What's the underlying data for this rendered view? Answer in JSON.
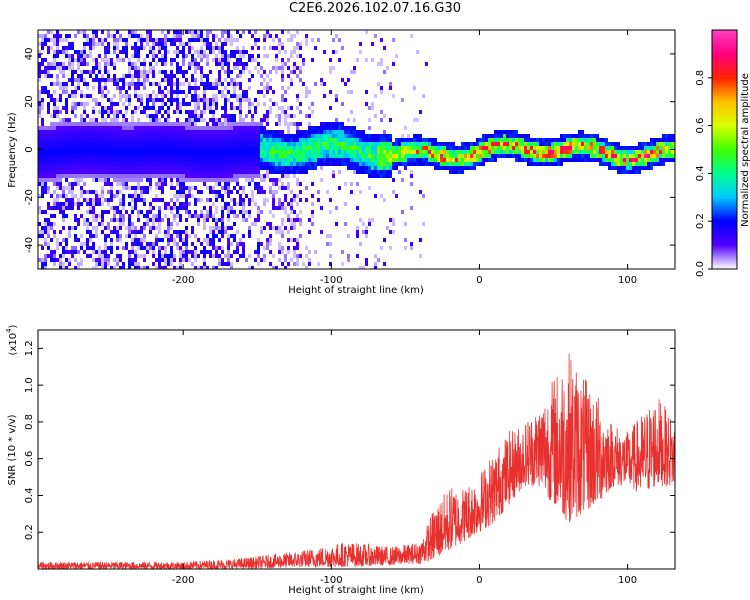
{
  "title": "C2E6.2026.102.07.16.G30",
  "chart_data": [
    {
      "type": "heatmap",
      "title": "C2E6.2026.102.07.16.G30",
      "xlabel": "Height of straight line (km)",
      "ylabel": "Frequency (Hz)",
      "xlim": [
        -298,
        132
      ],
      "ylim": [
        -50,
        50
      ],
      "xticks": [
        -200,
        -100,
        0,
        100
      ],
      "yticks": [
        -40,
        -20,
        0,
        20,
        40
      ],
      "colorbar": {
        "label": "Normalized spectral amplitude",
        "range": [
          0,
          1
        ],
        "ticks": [
          0.0,
          0.2,
          0.4,
          0.6,
          0.8
        ],
        "tick_labels": [
          "0.0",
          "0.2",
          "0.4",
          "0.6",
          "0.8"
        ],
        "colormap": [
          "#ffffff",
          "#5000ff",
          "#0000ff",
          "#00c8ff",
          "#00ff90",
          "#40ff00",
          "#d8ff00",
          "#ffc000",
          "#ff2000",
          "#ff0080",
          "#ff40c0"
        ]
      },
      "description_values": {
        "band_center_hz": 0,
        "band_halfwidth_hz_near_zero_km": 4,
        "scatter_extent_hz_below_minus150_km": [
          -50,
          50
        ],
        "peak_amplitude_region_km": [
          -40,
          130
        ]
      }
    },
    {
      "type": "line",
      "xlabel": "Height of straight line (km)",
      "ylabel": "SNR (10 * v/v)",
      "y_multiplier_label": "(x10",
      "y_multiplier_exp": "4",
      "y_multiplier_close": ")",
      "xlim": [
        -298,
        132
      ],
      "ylim": [
        0,
        1.3
      ],
      "xticks": [
        -200,
        -100,
        0,
        100
      ],
      "yticks": [
        0.2,
        0.4,
        0.6,
        0.8,
        1.0,
        1.2
      ],
      "ytick_labels": [
        "0.2",
        "0.4",
        "0.6",
        "0.8",
        "1.0",
        "1.2"
      ],
      "series": [
        {
          "color": "#e8312f",
          "envelope": [
            {
              "x": -298,
              "lo": 0.0,
              "hi": 0.04
            },
            {
              "x": -250,
              "lo": 0.0,
              "hi": 0.04
            },
            {
              "x": -200,
              "lo": 0.0,
              "hi": 0.04
            },
            {
              "x": -160,
              "lo": 0.0,
              "hi": 0.06
            },
            {
              "x": -120,
              "lo": 0.01,
              "hi": 0.1
            },
            {
              "x": -90,
              "lo": 0.01,
              "hi": 0.15
            },
            {
              "x": -60,
              "lo": 0.02,
              "hi": 0.12
            },
            {
              "x": -40,
              "lo": 0.03,
              "hi": 0.15
            },
            {
              "x": -30,
              "lo": 0.05,
              "hi": 0.35
            },
            {
              "x": -20,
              "lo": 0.1,
              "hi": 0.45
            },
            {
              "x": -10,
              "lo": 0.15,
              "hi": 0.45
            },
            {
              "x": 0,
              "lo": 0.2,
              "hi": 0.52
            },
            {
              "x": 10,
              "lo": 0.25,
              "hi": 0.65
            },
            {
              "x": 20,
              "lo": 0.35,
              "hi": 0.75
            },
            {
              "x": 30,
              "lo": 0.45,
              "hi": 0.8
            },
            {
              "x": 40,
              "lo": 0.45,
              "hi": 0.9
            },
            {
              "x": 50,
              "lo": 0.35,
              "hi": 1.05
            },
            {
              "x": 60,
              "lo": 0.25,
              "hi": 1.2
            },
            {
              "x": 70,
              "lo": 0.3,
              "hi": 1.05
            },
            {
              "x": 80,
              "lo": 0.35,
              "hi": 0.95
            },
            {
              "x": 90,
              "lo": 0.45,
              "hi": 0.8
            },
            {
              "x": 100,
              "lo": 0.45,
              "hi": 0.75
            },
            {
              "x": 110,
              "lo": 0.4,
              "hi": 0.85
            },
            {
              "x": 120,
              "lo": 0.45,
              "hi": 0.95
            },
            {
              "x": 132,
              "lo": 0.45,
              "hi": 0.8
            }
          ]
        }
      ]
    }
  ]
}
